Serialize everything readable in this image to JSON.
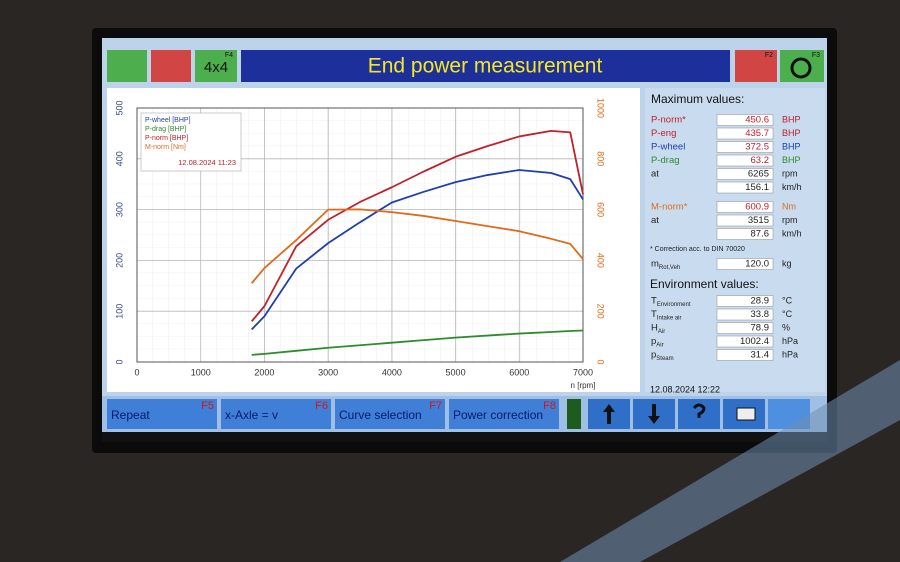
{
  "top_bar": {
    "keys": [
      "F4",
      "F2",
      "F3"
    ],
    "mode": "4x4",
    "title": "End power measurement"
  },
  "chart_data": {
    "type": "line",
    "x": [
      1800,
      2000,
      2500,
      3000,
      3500,
      4000,
      4500,
      5000,
      5500,
      6000,
      6500,
      6800,
      7000
    ],
    "series": [
      {
        "name": "P-wheel [BHP]",
        "color": "#1f3fae",
        "values": [
          64,
          90,
          184,
          234,
          275,
          314,
          335,
          354,
          368,
          378,
          372,
          360,
          320
        ]
      },
      {
        "name": "P-drag [BHP]",
        "color": "#2e8b2e",
        "values": [
          14,
          16,
          22,
          28,
          33,
          38,
          43,
          48,
          52,
          56,
          59,
          61,
          62
        ]
      },
      {
        "name": "P-norm [BHP]",
        "color": "#c0202a",
        "values": [
          80,
          110,
          228,
          280,
          315,
          344,
          375,
          404,
          425,
          444,
          455,
          452,
          330
        ]
      },
      {
        "name": "M-norm [Nm]",
        "color": "#e06a1a",
        "values": [
          310,
          370,
          480,
          600,
          601,
          590,
          575,
          555,
          535,
          515,
          485,
          465,
          405
        ],
        "axis": "y2"
      }
    ],
    "legend_date": "12.08.2024 11:23",
    "x_label": "n [rpm]",
    "xlim": [
      0,
      7000
    ],
    "xticks": [
      0,
      1000,
      2000,
      3000,
      4000,
      5000,
      6000,
      7000
    ],
    "ylim": [
      0,
      500
    ],
    "yticks": [
      0,
      100,
      200,
      300,
      400,
      500
    ],
    "y2lim": [
      0,
      1000
    ],
    "y2ticks": [
      0,
      200,
      400,
      600,
      800,
      1000
    ],
    "grid": true,
    "legend": "upper left"
  },
  "panel": {
    "title": "Maximum values:",
    "rows": [
      {
        "label": "P-norm*",
        "value": "450.6",
        "unit": "BHP",
        "color": "#c0202a"
      },
      {
        "label": "P-eng",
        "value": "435.7",
        "unit": "BHP",
        "color": "#c0202a"
      },
      {
        "label": "P-wheel",
        "value": "372.5",
        "unit": "BHP",
        "color": "#1f3fae"
      },
      {
        "label": "P-drag",
        "value": "63.2",
        "unit": "BHP",
        "color": "#2e8b2e"
      },
      {
        "label": "at",
        "value": "6265",
        "unit": "rpm",
        "color": "#222"
      },
      {
        "value": "156.1",
        "unit": "km/h",
        "color": "#222"
      },
      {
        "label": "M-norm*",
        "value": "600.9",
        "unit": "Nm",
        "color": "#e06a1a"
      },
      {
        "label": "at",
        "value": "3515",
        "unit": "rpm",
        "color": "#222"
      },
      {
        "value": "87.6",
        "unit": "km/h",
        "color": "#222"
      }
    ],
    "note": "* Correction acc. to DIN 70020",
    "mass": {
      "label": "m",
      "sub": "Rot,Veh",
      "value": "120.0",
      "unit": "kg"
    },
    "env_title": "Environment values:",
    "env_rows": [
      {
        "label": "T",
        "sub": "Environment",
        "value": "28.9",
        "unit": "°C"
      },
      {
        "label": "T",
        "sub": "Intake air",
        "value": "33.8",
        "unit": "°C"
      },
      {
        "label": "H",
        "sub": "Air",
        "value": "78.9",
        "unit": "%"
      },
      {
        "label": "p",
        "sub": "Air",
        "value": "1002.4",
        "unit": "hPa"
      },
      {
        "label": "p",
        "sub": "Steam",
        "value": "31.4",
        "unit": "hPa"
      }
    ],
    "date": "12.08.2024  12:22"
  },
  "toolbar": {
    "buttons": [
      {
        "label": "Repeat",
        "key": "F5"
      },
      {
        "label": "x-Axle = v",
        "key": "F6"
      },
      {
        "label": "Curve selection",
        "key": "F7"
      },
      {
        "label": "Power correction",
        "key": "F8"
      }
    ]
  }
}
